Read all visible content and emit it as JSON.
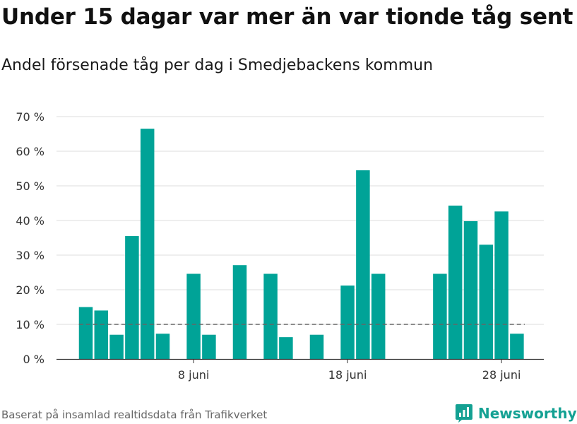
{
  "header": {
    "title": "Under 15 dagar var mer än var tionde tåg sent",
    "subtitle": "Andel försenade tåg per dag i Smedjebackens kommun"
  },
  "footer": {
    "source": "Baserat på insamlad realtidsdata från Trafikverket",
    "logo_text": "Newsworthy"
  },
  "colors": {
    "bar": "#00a397",
    "grid": "#dddddd",
    "reference": "#666666",
    "logo": "#14a193"
  },
  "chart_data": {
    "type": "bar",
    "title": "Under 15 dagar var mer än var tionde tåg sent",
    "subtitle": "Andel försenade tåg per dag i Smedjebackens kommun",
    "xlabel": "",
    "ylabel": "",
    "y_unit": "%",
    "ylim": [
      0,
      70
    ],
    "y_ticks": [
      0,
      10,
      20,
      30,
      40,
      50,
      60,
      70
    ],
    "y_tick_labels": [
      "0 %",
      "10 %",
      "20 %",
      "30 %",
      "40 %",
      "50 %",
      "60 %",
      "70 %"
    ],
    "x_tick_labels": [
      {
        "day": 8,
        "label": "8 juni"
      },
      {
        "day": 18,
        "label": "18 juni"
      },
      {
        "day": 28,
        "label": "28 juni"
      }
    ],
    "days": [
      {
        "day": 1,
        "value": 15.0
      },
      {
        "day": 2,
        "value": 14.0
      },
      {
        "day": 3,
        "value": 7.0
      },
      {
        "day": 4,
        "value": 35.5
      },
      {
        "day": 5,
        "value": 66.5
      },
      {
        "day": 6,
        "value": 7.3
      },
      {
        "day": 7,
        "value": null
      },
      {
        "day": 8,
        "value": 24.6
      },
      {
        "day": 9,
        "value": 7.0
      },
      {
        "day": 10,
        "value": null
      },
      {
        "day": 11,
        "value": 27.1
      },
      {
        "day": 12,
        "value": null
      },
      {
        "day": 13,
        "value": 24.6
      },
      {
        "day": 14,
        "value": 6.3
      },
      {
        "day": 15,
        "value": null
      },
      {
        "day": 16,
        "value": 7.0
      },
      {
        "day": 17,
        "value": null
      },
      {
        "day": 18,
        "value": 21.2
      },
      {
        "day": 19,
        "value": 54.5
      },
      {
        "day": 20,
        "value": 24.6
      },
      {
        "day": 21,
        "value": null
      },
      {
        "day": 22,
        "value": null
      },
      {
        "day": 23,
        "value": null
      },
      {
        "day": 24,
        "value": 24.6
      },
      {
        "day": 25,
        "value": 44.3
      },
      {
        "day": 26,
        "value": 39.8
      },
      {
        "day": 27,
        "value": 33.0
      },
      {
        "day": 28,
        "value": 42.6
      },
      {
        "day": 29,
        "value": 7.3
      }
    ],
    "reference_line": {
      "value": 10
    },
    "grid": true,
    "legend": "none"
  }
}
